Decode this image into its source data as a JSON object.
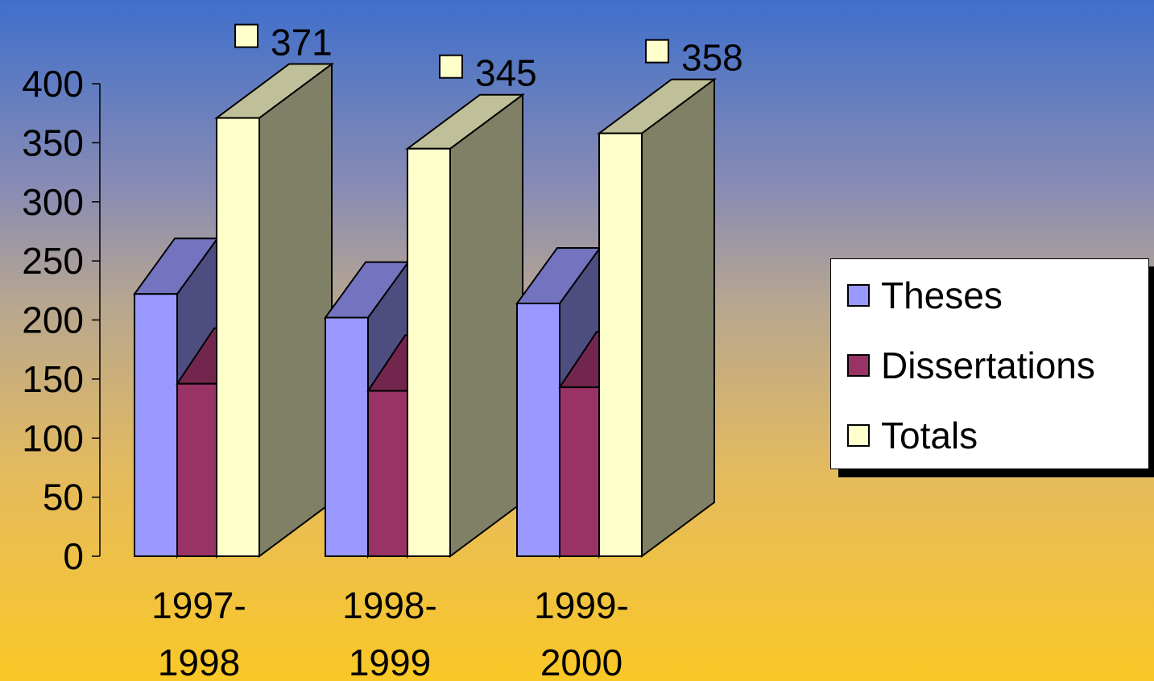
{
  "chart_data": {
    "type": "bar",
    "categories": [
      [
        "1997-",
        "1998"
      ],
      [
        "1998-",
        "1999"
      ],
      [
        "1999-",
        "2000"
      ]
    ],
    "series": [
      {
        "name": "Theses",
        "values": [
          222,
          202,
          214
        ],
        "color": "#9999ff"
      },
      {
        "name": "Dissertations",
        "values": [
          146,
          140,
          143
        ],
        "color": "#993366"
      },
      {
        "name": "Totals",
        "values": [
          371,
          345,
          358
        ],
        "color": "#ffffcc"
      }
    ],
    "data_labels": [
      "371",
      "345",
      "358"
    ],
    "y_ticks": [
      "0",
      "50",
      "100",
      "150",
      "200",
      "250",
      "300",
      "350",
      "400"
    ],
    "ylim": [
      0,
      400
    ],
    "legend_position": "right",
    "style": "3d-clustered-column"
  }
}
